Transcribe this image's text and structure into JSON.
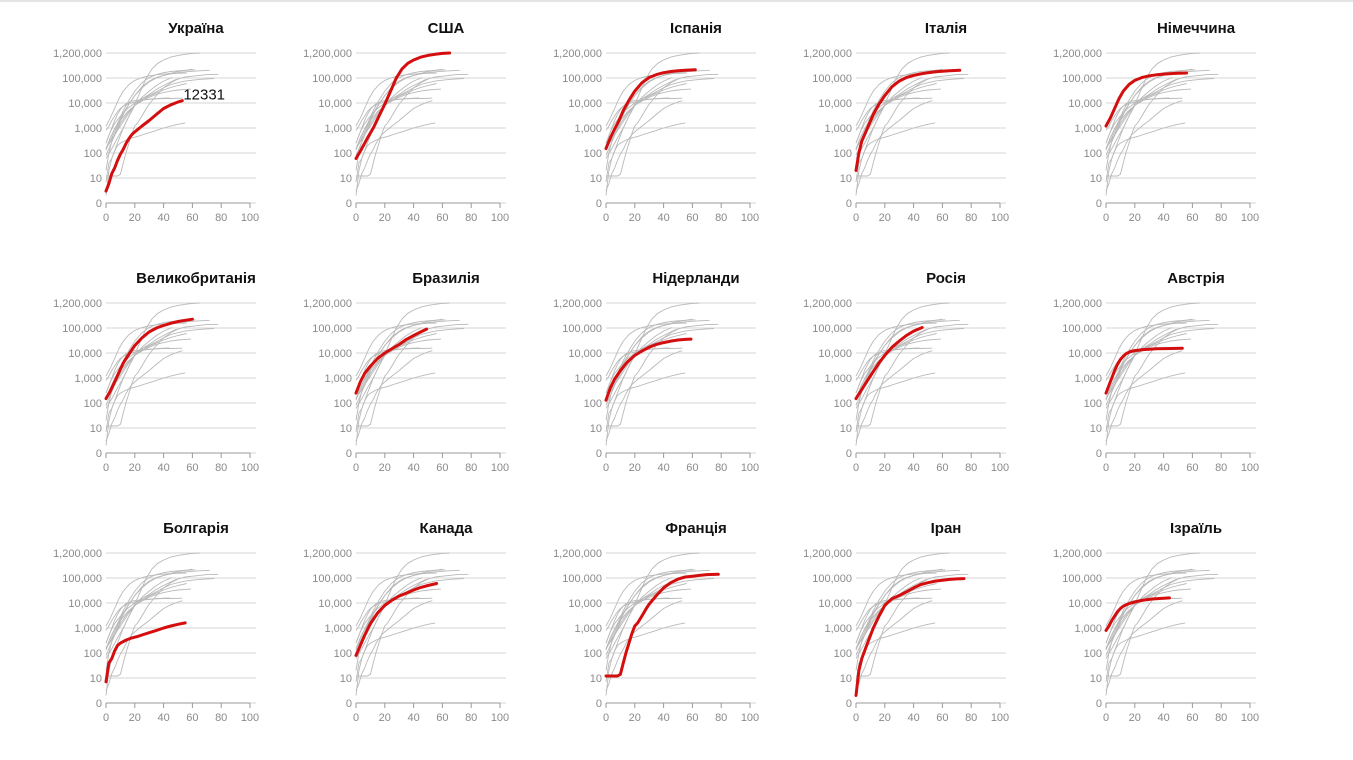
{
  "page": {
    "background": "#ffffff"
  },
  "colors": {
    "highlight": "#d40e0e",
    "background_line": "#b9b9b9",
    "grid": "#d4d4d4",
    "axis": "#999999",
    "tick_text": "#8a8a8a"
  },
  "chart_data": {
    "type": "line",
    "layout": "small-multiples",
    "x_scale": "linear",
    "y_scale": "log",
    "xlim": [
      0,
      100
    ],
    "xticks": [
      0,
      20,
      40,
      60,
      80,
      100
    ],
    "xtick_labels": [
      "0",
      "20",
      "40",
      "60",
      "80",
      "100"
    ],
    "yticks": [
      0,
      10,
      100,
      1000,
      10000,
      100000,
      1200000
    ],
    "ytick_labels": [
      "0",
      "10",
      "100",
      "1,000",
      "10,000",
      "100,000",
      "1,200,000"
    ],
    "grid": true,
    "annotation": {
      "panel": "Україна",
      "text": "12331",
      "value": 12331
    },
    "series": [
      {
        "name": "Україна",
        "x": [
          0,
          2,
          4,
          6,
          8,
          10,
          12,
          14,
          16,
          18,
          20,
          25,
          30,
          35,
          40,
          45,
          50,
          53
        ],
        "y": [
          3,
          6,
          15,
          25,
          50,
          90,
          140,
          250,
          380,
          550,
          700,
          1200,
          2000,
          3500,
          6000,
          8500,
          11000,
          12331
        ]
      },
      {
        "name": "США",
        "x": [
          0,
          4,
          8,
          12,
          16,
          20,
          24,
          28,
          32,
          36,
          40,
          45,
          50,
          55,
          60,
          65
        ],
        "y": [
          60,
          150,
          400,
          1000,
          3000,
          9000,
          30000,
          100000,
          250000,
          430000,
          600000,
          800000,
          950000,
          1050000,
          1150000,
          1200000
        ]
      },
      {
        "name": "Іспанія",
        "x": [
          0,
          3,
          6,
          9,
          12,
          16,
          20,
          25,
          30,
          35,
          40,
          45,
          50,
          55,
          62
        ],
        "y": [
          150,
          400,
          900,
          2000,
          5000,
          13000,
          30000,
          65000,
          105000,
          140000,
          170000,
          190000,
          205000,
          215000,
          225000
        ]
      },
      {
        "name": "Італія",
        "x": [
          0,
          2,
          4,
          8,
          12,
          16,
          20,
          25,
          30,
          35,
          40,
          45,
          50,
          55,
          60,
          65,
          72
        ],
        "y": [
          20,
          100,
          300,
          1000,
          3500,
          9000,
          20000,
          45000,
          75000,
          105000,
          130000,
          150000,
          170000,
          185000,
          195000,
          205000,
          215000
        ]
      },
      {
        "name": "Німеччина",
        "x": [
          0,
          3,
          6,
          9,
          12,
          16,
          20,
          25,
          30,
          35,
          40,
          45,
          50,
          56
        ],
        "y": [
          1200,
          2500,
          6000,
          15000,
          30000,
          55000,
          80000,
          105000,
          125000,
          138000,
          148000,
          155000,
          160000,
          165000
        ]
      },
      {
        "name": "Великобританія",
        "x": [
          0,
          3,
          6,
          9,
          12,
          16,
          20,
          25,
          30,
          35,
          40,
          45,
          50,
          55,
          60
        ],
        "y": [
          150,
          300,
          700,
          1700,
          4000,
          9000,
          20000,
          40000,
          70000,
          100000,
          130000,
          160000,
          190000,
          215000,
          240000
        ]
      },
      {
        "name": "Бразилія",
        "x": [
          0,
          3,
          6,
          10,
          15,
          20,
          25,
          30,
          35,
          40,
          45,
          49
        ],
        "y": [
          250,
          700,
          1500,
          3000,
          6000,
          10000,
          15000,
          22000,
          35000,
          50000,
          70000,
          90000
        ]
      },
      {
        "name": "Нідерланди",
        "x": [
          0,
          3,
          6,
          10,
          15,
          20,
          25,
          30,
          35,
          40,
          45,
          50,
          55,
          59
        ],
        "y": [
          130,
          400,
          900,
          2000,
          4500,
          8000,
          12000,
          17000,
          22000,
          26000,
          30000,
          33000,
          35000,
          36000
        ]
      },
      {
        "name": "Росія",
        "x": [
          0,
          4,
          8,
          12,
          16,
          20,
          25,
          30,
          35,
          40,
          46
        ],
        "y": [
          150,
          350,
          800,
          1800,
          4000,
          8000,
          17000,
          30000,
          50000,
          75000,
          105000
        ]
      },
      {
        "name": "Австрія",
        "x": [
          0,
          2,
          4,
          6,
          8,
          10,
          12,
          14,
          17,
          20,
          25,
          30,
          35,
          40,
          45,
          53
        ],
        "y": [
          250,
          500,
          1000,
          2000,
          3500,
          5500,
          7500,
          9500,
          11500,
          12500,
          13500,
          14200,
          14700,
          15000,
          15200,
          15500
        ]
      },
      {
        "name": "Болгарія",
        "x": [
          0,
          2,
          4,
          6,
          8,
          10,
          14,
          18,
          22,
          26,
          30,
          35,
          40,
          45,
          50,
          55
        ],
        "y": [
          7,
          40,
          60,
          120,
          200,
          250,
          330,
          400,
          460,
          550,
          650,
          800,
          1000,
          1200,
          1400,
          1600
        ]
      },
      {
        "name": "Канада",
        "x": [
          0,
          3,
          6,
          10,
          15,
          20,
          25,
          30,
          35,
          40,
          45,
          50,
          56
        ],
        "y": [
          80,
          200,
          500,
          1500,
          4000,
          8000,
          13000,
          19000,
          25000,
          33000,
          42000,
          50000,
          60000
        ]
      },
      {
        "name": "Франція",
        "x": [
          0,
          4,
          8,
          10,
          12,
          14,
          16,
          18,
          20,
          22,
          24,
          26,
          28,
          30,
          35,
          40,
          45,
          50,
          55,
          60,
          65,
          70,
          78
        ],
        "y": [
          12,
          12,
          12,
          14,
          40,
          110,
          250,
          600,
          1200,
          1600,
          2500,
          3800,
          6000,
          9000,
          20000,
          40000,
          65000,
          90000,
          110000,
          120000,
          130000,
          140000,
          145000
        ]
      },
      {
        "name": "Іран",
        "x": [
          0,
          2,
          4,
          8,
          12,
          16,
          20,
          25,
          30,
          35,
          40,
          45,
          50,
          55,
          60,
          65,
          70,
          75
        ],
        "y": [
          2,
          20,
          60,
          250,
          1000,
          3000,
          8000,
          15000,
          20000,
          28000,
          40000,
          55000,
          65000,
          75000,
          82000,
          88000,
          92000,
          95000
        ]
      },
      {
        "name": "Ізраїль",
        "x": [
          0,
          2,
          4,
          6,
          8,
          10,
          12,
          14,
          16,
          20,
          24,
          28,
          32,
          36,
          40,
          44
        ],
        "y": [
          800,
          1200,
          2000,
          3000,
          4500,
          6000,
          7500,
          8500,
          9500,
          11000,
          12500,
          13500,
          14500,
          15000,
          15500,
          16000
        ]
      }
    ]
  }
}
